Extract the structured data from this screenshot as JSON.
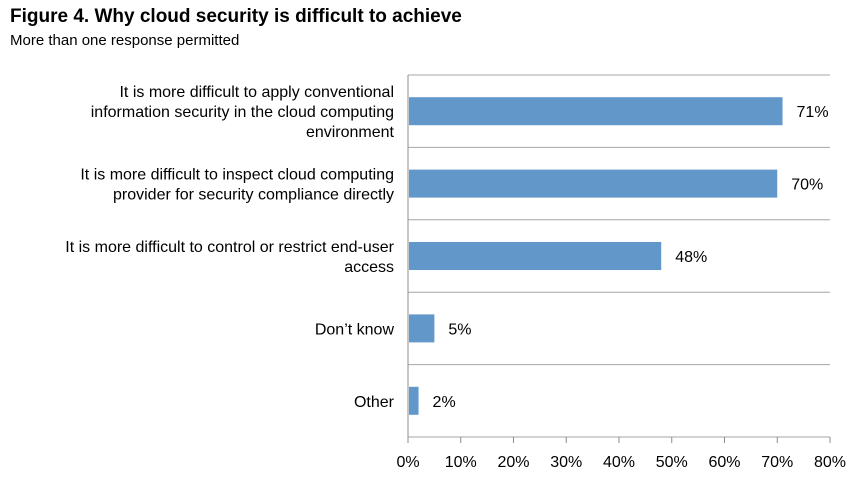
{
  "chart_data": {
    "type": "bar",
    "orientation": "horizontal",
    "title": "Figure 4. Why cloud security is difficult to achieve",
    "subtitle": "More than one response permitted",
    "categories": [
      [
        "It is more difficult to apply conventional",
        "information security in the cloud computing",
        "environment"
      ],
      [
        "It is more difficult to inspect cloud computing",
        "provider for security compliance directly"
      ],
      [
        "It is more difficult to control or restrict end-user",
        "access"
      ],
      [
        "Don’t know"
      ],
      [
        "Other"
      ]
    ],
    "values": [
      71,
      70,
      48,
      5,
      2
    ],
    "data_labels": [
      "71%",
      "70%",
      "48%",
      "5%",
      "2%"
    ],
    "xlim": [
      0,
      80
    ],
    "x_ticks": [
      0,
      10,
      20,
      30,
      40,
      50,
      60,
      70,
      80
    ],
    "x_tick_labels": [
      "0%",
      "10%",
      "20%",
      "30%",
      "40%",
      "50%",
      "60%",
      "70%",
      "80%"
    ],
    "gridlines": true,
    "bar_color": "#6297c9",
    "grid_color": "#a6a6a6",
    "axis_color": "#8c8c8c"
  }
}
